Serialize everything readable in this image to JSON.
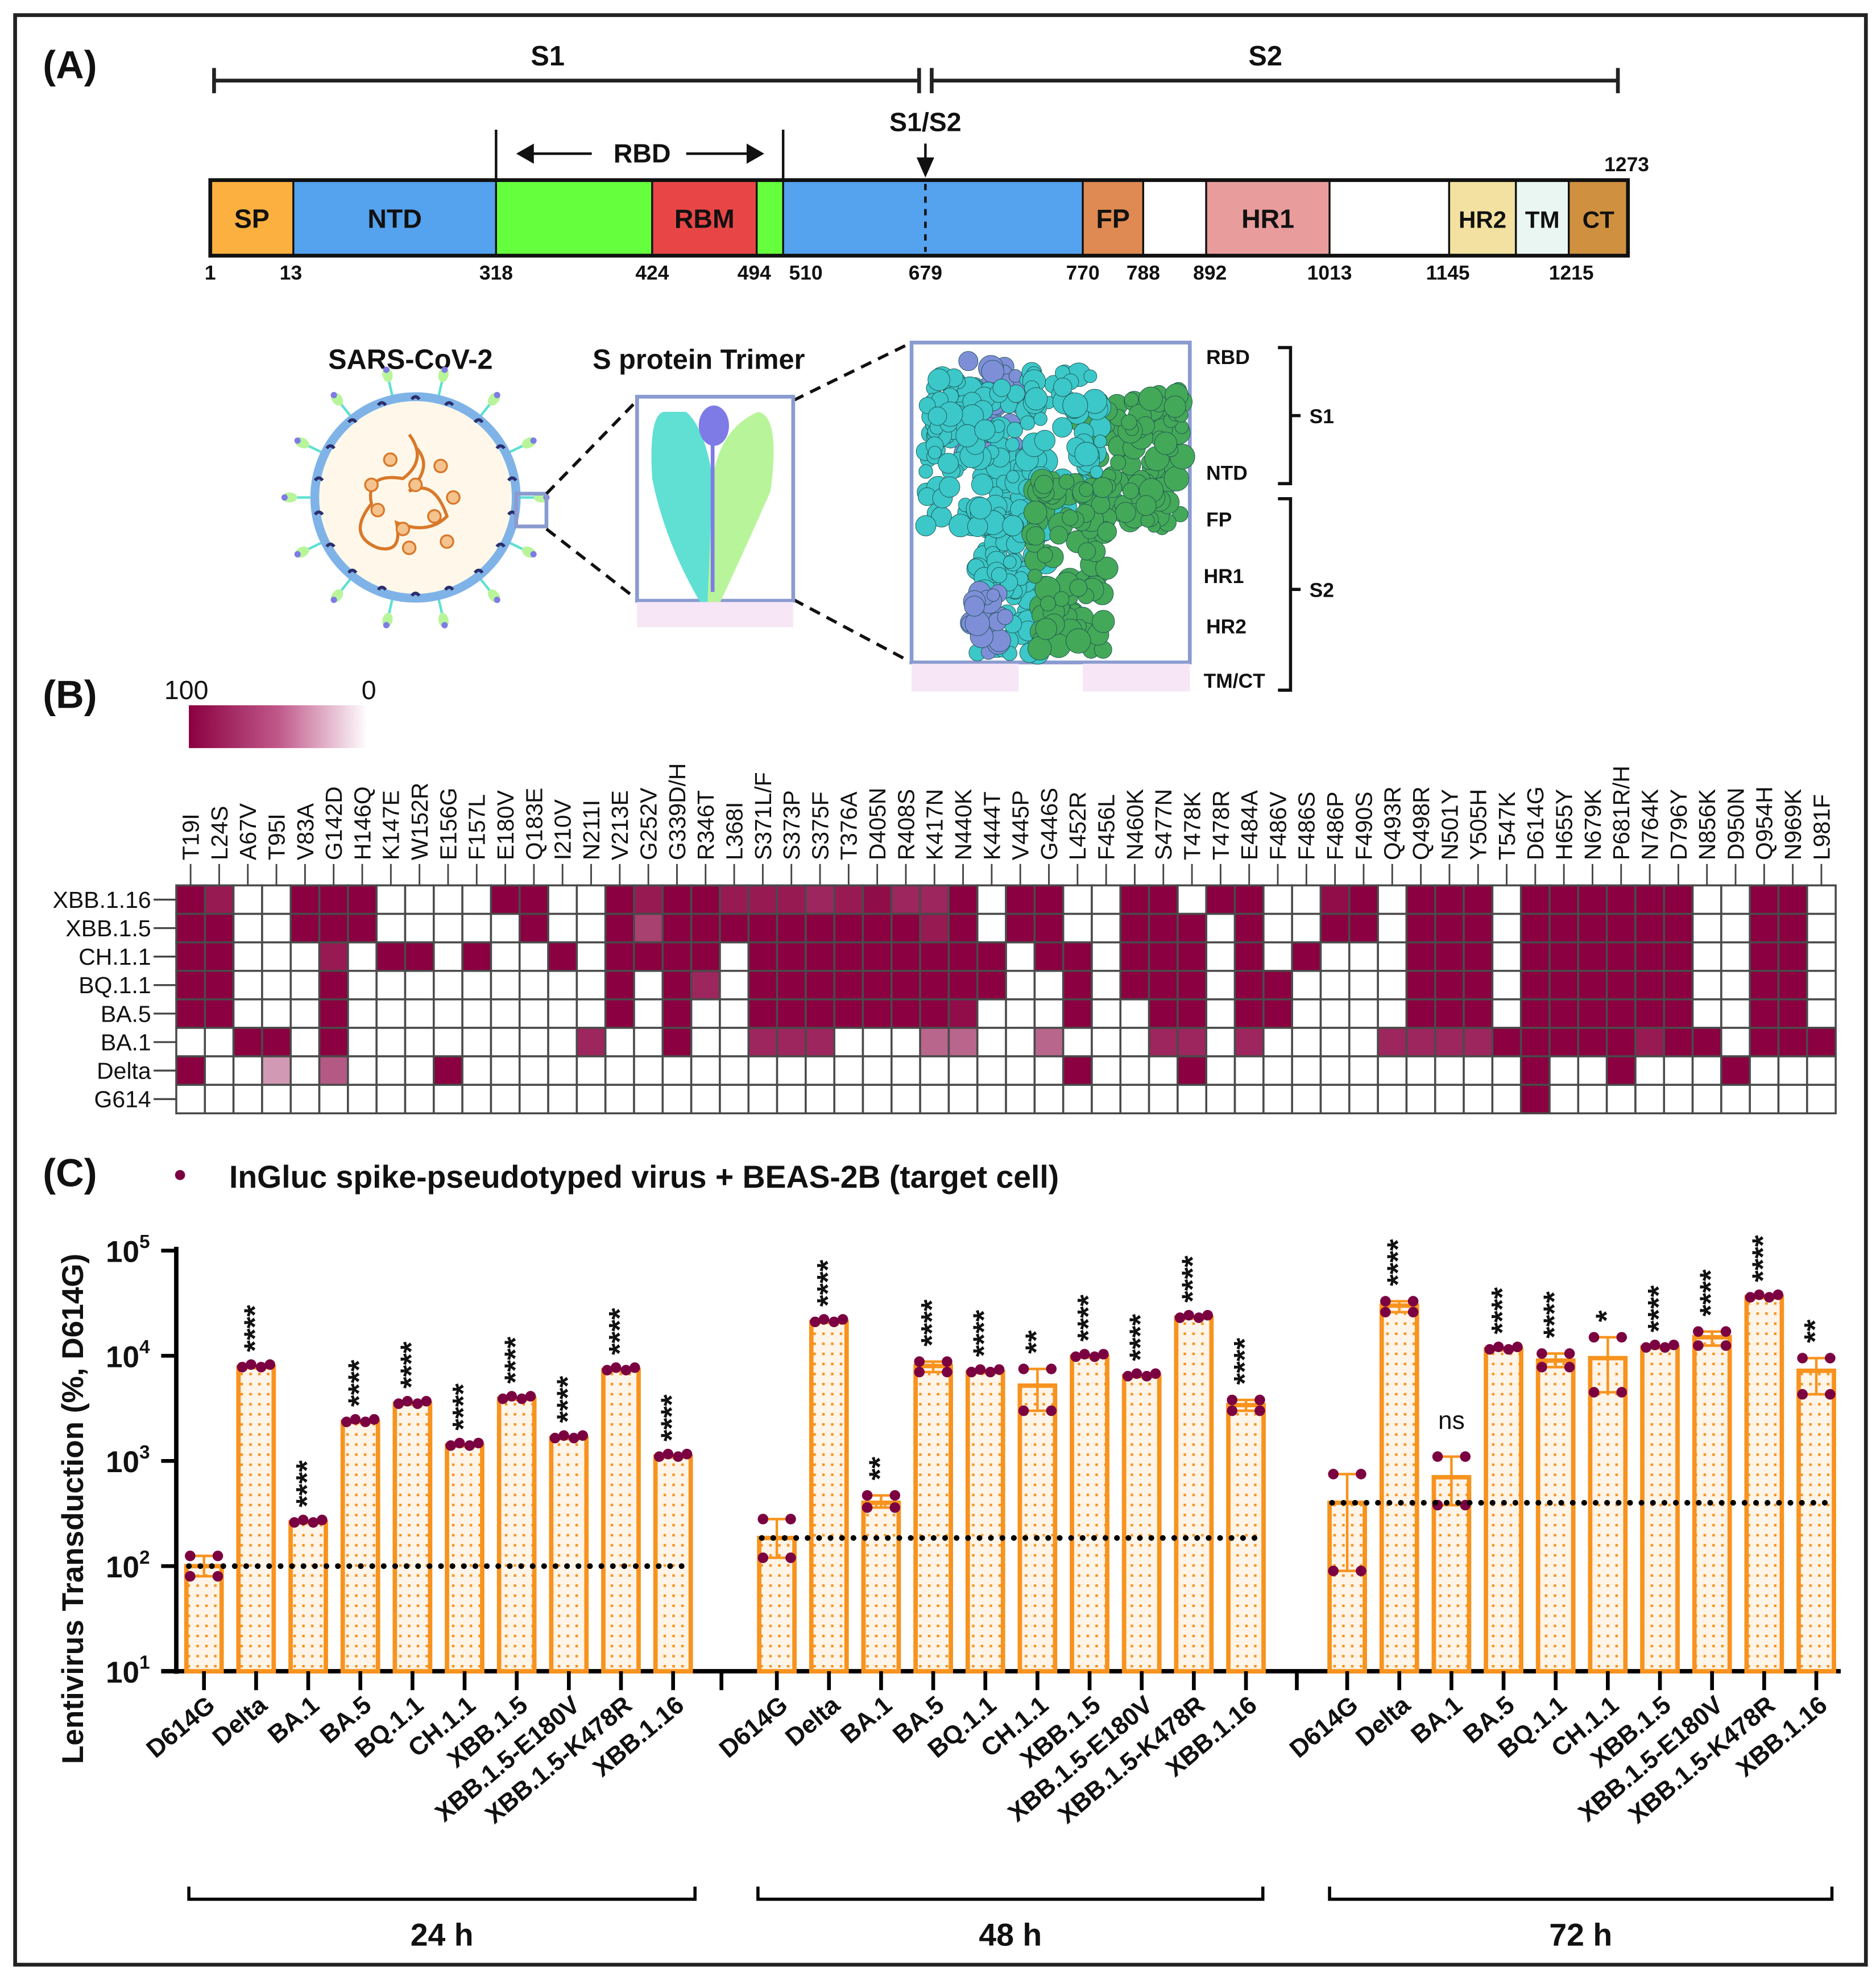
{
  "figure": {
    "panel_a_label": "(A)",
    "panel_b_label": "(B)",
    "panel_c_label": "(C)"
  },
  "panel_a": {
    "s1": "S1",
    "s2": "S2",
    "s1s2": "S1/S2",
    "rbd": "RBD",
    "end_position": "1273",
    "rbd_color": "#66FF3D",
    "domains": [
      {
        "label": "SP",
        "color": "#FBB040"
      },
      {
        "label": "NTD",
        "color": "#55A2EE"
      },
      {
        "label": "RBM",
        "color": "#E84646"
      },
      {
        "label": "FP",
        "color": "#DE8A52"
      },
      {
        "label": "HR1",
        "color": "#E89C9C"
      },
      {
        "label": "HR2",
        "color": "#F2E1A0"
      },
      {
        "label": "TM",
        "color": "#EAF6F2"
      },
      {
        "label": "CT",
        "color": "#CF9040"
      }
    ],
    "positions": [
      "1",
      "13",
      "318",
      "424",
      "494",
      "510",
      "679",
      "770",
      "788",
      "892",
      "1013",
      "1145",
      "1215"
    ],
    "virus_title": "SARS-CoV-2",
    "trimer_title": "S protein Trimer",
    "structure_labels": [
      "RBD",
      "NTD",
      "FP",
      "HR1",
      "HR2",
      "TM/CT"
    ],
    "bracket_s1": "S1",
    "bracket_s2": "S2"
  },
  "panel_b": {
    "colorbar_max": "100",
    "colorbar_min": "0",
    "colors": {
      "high": "#8B0040",
      "low": "#FFFFFF"
    },
    "mutations": [
      "T19I",
      "L24S",
      "A67V",
      "T95I",
      "V83A",
      "G142D",
      "H146Q",
      "K147E",
      "W152R",
      "E156G",
      "F157L",
      "E180V",
      "Q183E",
      "I210V",
      "N211I",
      "V213E",
      "G252V",
      "G339D/H",
      "R346T",
      "L368I",
      "S371L/F",
      "S373P",
      "S375F",
      "T376A",
      "D405N",
      "R408S",
      "K417N",
      "N440K",
      "K444T",
      "V445P",
      "G446S",
      "L452R",
      "F456L",
      "N460K",
      "S477N",
      "T478K",
      "T478R",
      "E484A",
      "F486V",
      "F486S",
      "F486P",
      "F490S",
      "Q493R",
      "Q498R",
      "N501Y",
      "Y505H",
      "T547K",
      "D614G",
      "H655Y",
      "N679K",
      "P681R/H",
      "N764K",
      "D796Y",
      "N856K",
      "D950N",
      "Q954H",
      "N969K",
      "L981F"
    ],
    "variants": [
      "XBB.1.16",
      "XBB.1.5",
      "CH.1.1",
      "BQ.1.1",
      "BA.5",
      "BA.1",
      "Delta",
      "G614"
    ],
    "matrix": [
      [
        1,
        0.9,
        0,
        0,
        1,
        1,
        1,
        0,
        0,
        0,
        0,
        1,
        1,
        0,
        0,
        1,
        0.9,
        1,
        1,
        0.9,
        0.9,
        0.9,
        0.85,
        0.9,
        0.95,
        0.85,
        0.85,
        1,
        0,
        1,
        1,
        0,
        0,
        1,
        1,
        0,
        1,
        1,
        0,
        0,
        0.95,
        1,
        0,
        1,
        1,
        1,
        0,
        1,
        1,
        1,
        1,
        1,
        1,
        0,
        0,
        1,
        1,
        0
      ],
      [
        1,
        1,
        0,
        0,
        1,
        1,
        1,
        0,
        0,
        0,
        0,
        0,
        1,
        0,
        0,
        1,
        0.75,
        1,
        1,
        1,
        1,
        1,
        1,
        1,
        1,
        1,
        0.9,
        1,
        0,
        1,
        1,
        0,
        0,
        1,
        1,
        1,
        0,
        1,
        0,
        0,
        1,
        1,
        0,
        1,
        1,
        1,
        0,
        1,
        1,
        1,
        1,
        1,
        1,
        0,
        0,
        1,
        1,
        0
      ],
      [
        1,
        1,
        0,
        0,
        0,
        0.9,
        0,
        1,
        1,
        0,
        1,
        0,
        0,
        1,
        0,
        1,
        1,
        1,
        1,
        0,
        1,
        1,
        1,
        1,
        1,
        1,
        1,
        1,
        1,
        0,
        1,
        1,
        0,
        1,
        1,
        1,
        0,
        1,
        0,
        1,
        0,
        0,
        0,
        1,
        1,
        1,
        0,
        1,
        1,
        1,
        1,
        1,
        1,
        0,
        0,
        1,
        1,
        0
      ],
      [
        1,
        1,
        0,
        0,
        0,
        1,
        0,
        0,
        0,
        0,
        0,
        0,
        0,
        0,
        0,
        1,
        0,
        1,
        0.85,
        0,
        1,
        1,
        1,
        1,
        1,
        1,
        1,
        1,
        1,
        0,
        0,
        1,
        0,
        1,
        1,
        1,
        0,
        1,
        1,
        0,
        0,
        0,
        0,
        1,
        1,
        1,
        0,
        1,
        1,
        1,
        1,
        1,
        1,
        0,
        0,
        1,
        1,
        0
      ],
      [
        1,
        1,
        0,
        0,
        0,
        1,
        0,
        0,
        0,
        0,
        0,
        0,
        0,
        0,
        0,
        1,
        0,
        1,
        0,
        0,
        1,
        1,
        1,
        1,
        1,
        1,
        1,
        0.95,
        0,
        0,
        0,
        1,
        0,
        0,
        1,
        1,
        0,
        1,
        1,
        0,
        0,
        0,
        0,
        1,
        1,
        1,
        0,
        1,
        1,
        1,
        1,
        1,
        1,
        0,
        0,
        1,
        1,
        0
      ],
      [
        0,
        0,
        1,
        1,
        0,
        1,
        0,
        0,
        0,
        0,
        0,
        0,
        0,
        0,
        0.85,
        0,
        0,
        1,
        0,
        0,
        0.85,
        0.85,
        0.85,
        0,
        0,
        0,
        0.6,
        0.6,
        0,
        0,
        0.6,
        0,
        0,
        0,
        0.85,
        0.85,
        0,
        0.85,
        0,
        0,
        0,
        0,
        0.85,
        0.85,
        0.85,
        0.85,
        1,
        1,
        1,
        1,
        1,
        0.9,
        1,
        1,
        0,
        1,
        1,
        1
      ],
      [
        1,
        0,
        0,
        0.4,
        0,
        0.65,
        0,
        0,
        0,
        1,
        0,
        0,
        0,
        0,
        0,
        0,
        0,
        0,
        0,
        0,
        0,
        0,
        0,
        0,
        0,
        0,
        0,
        0,
        0,
        0,
        0,
        1,
        0,
        0,
        0,
        1,
        0,
        0,
        0,
        0,
        0,
        0,
        0,
        0,
        0,
        0,
        0,
        1,
        0,
        0,
        1,
        0,
        0,
        0,
        1,
        0,
        0,
        0
      ],
      [
        0,
        0,
        0,
        0,
        0,
        0,
        0,
        0,
        0,
        0,
        0,
        0,
        0,
        0,
        0,
        0,
        0,
        0,
        0,
        0,
        0,
        0,
        0,
        0,
        0,
        0,
        0,
        0,
        0,
        0,
        0,
        0,
        0,
        0,
        0,
        0,
        0,
        0,
        0,
        0,
        0,
        0,
        0,
        0,
        0,
        0,
        0,
        1,
        0,
        0,
        0,
        0,
        0,
        0,
        0,
        0,
        0,
        0
      ]
    ]
  },
  "chart_data": {
    "type": "bar",
    "title": "InGluc spike-pseudotyped virus + BEAS-2B (target cell)",
    "ylabel": "Lentivirus Transduction (%, D614G)",
    "xlabel": "",
    "yscale": "log",
    "ylim": [
      10,
      100000
    ],
    "ytick_base": "10",
    "ytick_exponents": [
      "1",
      "2",
      "3",
      "4",
      "5"
    ],
    "colors": {
      "bar_edge": "#F7931E",
      "bar_fill": "#FFF4E8",
      "point": "#7B0041"
    },
    "groups": [
      {
        "label": "24 h",
        "baseline": 100,
        "bars": [
          {
            "category": "D614G",
            "value": 100,
            "sig": "",
            "err": [
              80,
              125
            ]
          },
          {
            "category": "Delta",
            "value": 7800,
            "sig": "****"
          },
          {
            "category": "BA.1",
            "value": 260,
            "sig": "****"
          },
          {
            "category": "BA.5",
            "value": 2350,
            "sig": "****"
          },
          {
            "category": "BQ.1.1",
            "value": 3500,
            "sig": "****"
          },
          {
            "category": "CH.1.1",
            "value": 1400,
            "sig": "****"
          },
          {
            "category": "XBB.1.5",
            "value": 3900,
            "sig": "****"
          },
          {
            "category": "XBB.1.5-E180V",
            "value": 1650,
            "sig": "****"
          },
          {
            "category": "XBB.1.5-K478R",
            "value": 7300,
            "sig": "****"
          },
          {
            "category": "XBB.1.16",
            "value": 1100,
            "sig": "****"
          }
        ]
      },
      {
        "label": "48 h",
        "baseline": 185,
        "bars": [
          {
            "category": "D614G",
            "value": 185,
            "sig": "",
            "err": [
              120,
              280
            ]
          },
          {
            "category": "Delta",
            "value": 21000,
            "sig": "****"
          },
          {
            "category": "BA.1",
            "value": 400,
            "sig": "**",
            "err": [
              360,
              470
            ]
          },
          {
            "category": "BA.5",
            "value": 8000,
            "sig": "****",
            "err": [
              7000,
              8800
            ]
          },
          {
            "category": "BQ.1.1",
            "value": 7000,
            "sig": "****"
          },
          {
            "category": "CH.1.1",
            "value": 5200,
            "sig": "**",
            "err": [
              3000,
              7500
            ]
          },
          {
            "category": "XBB.1.5",
            "value": 9800,
            "sig": "****"
          },
          {
            "category": "XBB.1.5-E180V",
            "value": 6400,
            "sig": "****"
          },
          {
            "category": "XBB.1.5-K478R",
            "value": 23000,
            "sig": "****"
          },
          {
            "category": "XBB.1.16",
            "value": 3400,
            "sig": "****",
            "err": [
              3000,
              3800
            ]
          }
        ]
      },
      {
        "label": "72 h",
        "baseline": 400,
        "bars": [
          {
            "category": "D614G",
            "value": 400,
            "sig": "",
            "err": [
              90,
              750
            ]
          },
          {
            "category": "Delta",
            "value": 30000,
            "sig": "****",
            "err": [
              26000,
              33000
            ]
          },
          {
            "category": "BA.1",
            "value": 700,
            "sig": "ns",
            "err": [
              380,
              1100
            ]
          },
          {
            "category": "BA.5",
            "value": 11500,
            "sig": "****"
          },
          {
            "category": "BQ.1.1",
            "value": 9000,
            "sig": "****",
            "err": [
              7800,
              10500
            ]
          },
          {
            "category": "CH.1.1",
            "value": 9500,
            "sig": "*",
            "err": [
              4500,
              15000
            ]
          },
          {
            "category": "XBB.1.5",
            "value": 12000,
            "sig": "****"
          },
          {
            "category": "XBB.1.5-E180V",
            "value": 15000,
            "sig": "****",
            "err": [
              12500,
              17000
            ]
          },
          {
            "category": "XBB.1.5-K478R",
            "value": 36000,
            "sig": "****"
          },
          {
            "category": "XBB.1.16",
            "value": 7200,
            "sig": "**",
            "err": [
              4300,
              9500
            ]
          }
        ]
      }
    ]
  }
}
